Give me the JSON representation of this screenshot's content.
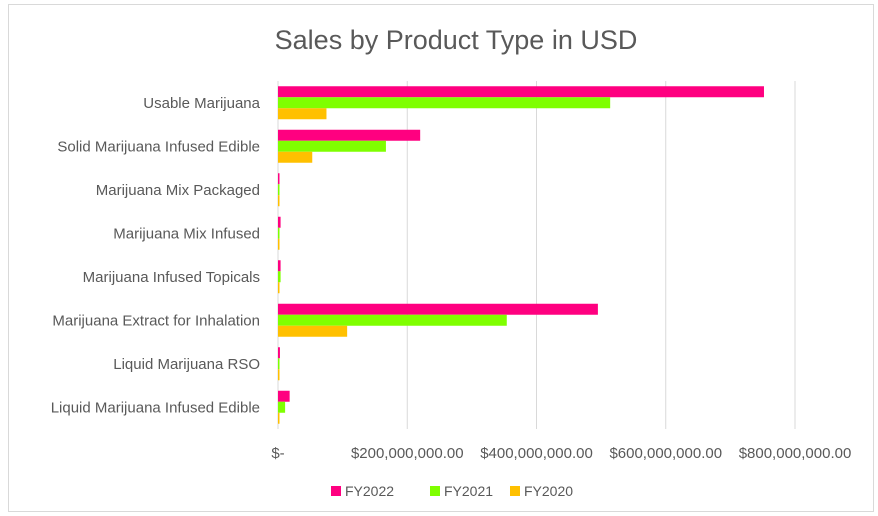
{
  "chart_data": {
    "type": "bar",
    "orientation": "horizontal",
    "title": "Sales by Product Type in USD",
    "xlabel": "",
    "ylabel": "",
    "categories": [
      "Usable Marijuana",
      "Solid Marijuana Infused Edible",
      "Marijuana Mix Packaged",
      "Marijuana Mix Infused",
      "Marijuana Infused Topicals",
      "Marijuana Extract for Inhalation",
      "Liquid Marijuana RSO",
      "Liquid Marijuana Infused Edible"
    ],
    "series": [
      {
        "name": "FY2022",
        "color": "#ff0080",
        "values": [
          752000000,
          220000000,
          1500000,
          4000000,
          4000000,
          495000000,
          3000000,
          18000000
        ]
      },
      {
        "name": "FY2021",
        "color": "#7fff00",
        "values": [
          514000000,
          167000000,
          1000000,
          2000000,
          4000000,
          354000000,
          1500000,
          11000000
        ]
      },
      {
        "name": "FY2020",
        "color": "#ffc000",
        "values": [
          75000000,
          53000000,
          500000,
          1000000,
          1000000,
          107000000,
          1000000,
          2000000
        ]
      }
    ],
    "xlim": [
      0,
      800000000
    ],
    "x_ticks": [
      0,
      200000000,
      400000000,
      600000000,
      800000000
    ],
    "x_tick_labels": [
      "$-",
      "$200,000,000.00",
      "$400,000,000.00",
      "$600,000,000.00",
      "$800,000,000.00"
    ],
    "grid": "vertical major gridlines",
    "legend_position": "bottom"
  }
}
